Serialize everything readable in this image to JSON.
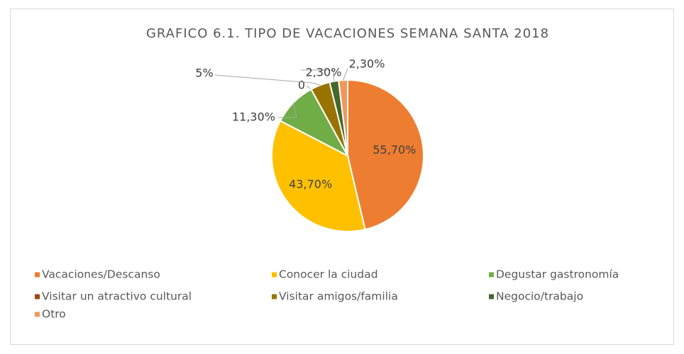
{
  "chart_data": {
    "type": "pie",
    "title": "GRAFICO 6.1. TIPO DE VACACIONES SEMANA SANTA 2018",
    "categories": [
      "Vacaciones/Descanso",
      "Conocer la ciudad",
      "Degustar gastronomía",
      "Visitar un atractivo cultural",
      "Visitar amigos/familia",
      "Negocio/trabajo",
      "Otro"
    ],
    "values": [
      55.7,
      43.7,
      11.3,
      0,
      5,
      2.3,
      2.3
    ],
    "value_labels": [
      "55,70%",
      "43,70%",
      "11,30%",
      "0",
      "5%",
      "2,30%",
      "2,30%"
    ],
    "colors": [
      "#ed7d31",
      "#ffc000",
      "#70ad47",
      "#9e480e",
      "#997300",
      "#43682b",
      "#f1975a"
    ],
    "legend": "bottom"
  }
}
